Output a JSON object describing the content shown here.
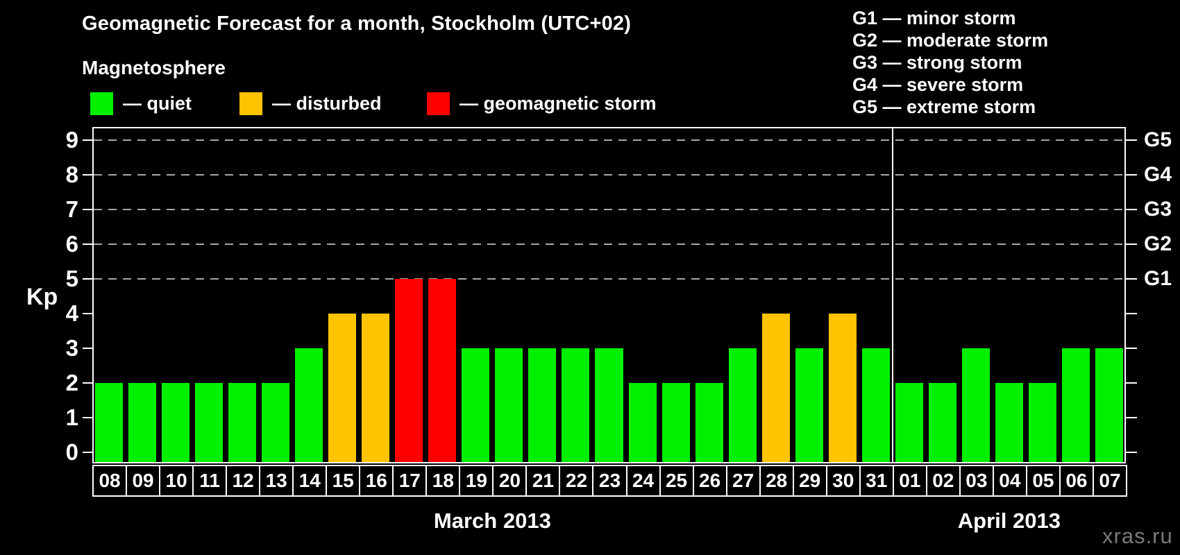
{
  "title": "Geomagnetic Forecast for a month, Stockholm (UTC+02)",
  "subtitle": "Magnetosphere",
  "legend": {
    "items": [
      {
        "status": "quiet",
        "label": "— quiet",
        "color": "#00f000"
      },
      {
        "status": "disturbed",
        "label": "— disturbed",
        "color": "#ffc400"
      },
      {
        "status": "storm",
        "label": "— geomagnetic storm",
        "color": "#ff0000"
      }
    ]
  },
  "storm_scale": {
    "items": [
      "G1 — minor storm",
      "G2 — moderate storm",
      "G3 — strong storm",
      "G4 — severe storm",
      "G5 — extreme storm"
    ]
  },
  "watermark": "xras.ru",
  "chart_data": {
    "type": "bar",
    "title": "Geomagnetic Forecast for a month, Stockholm (UTC+02)",
    "ylabel": "Kp",
    "ylim": [
      0,
      9
    ],
    "yticks": [
      0,
      1,
      2,
      3,
      4,
      5,
      6,
      7,
      8,
      9
    ],
    "gridlines_at_kp": [
      5,
      6,
      7,
      8,
      9
    ],
    "grid": "dashed horizontal at storm levels only",
    "legend_position": "top-left",
    "right_axis_labels": [
      {
        "kp": 5,
        "label": "G1"
      },
      {
        "kp": 6,
        "label": "G2"
      },
      {
        "kp": 7,
        "label": "G3"
      },
      {
        "kp": 8,
        "label": "G4"
      },
      {
        "kp": 9,
        "label": "G5"
      }
    ],
    "months": [
      {
        "label": "March 2013",
        "days": 24
      },
      {
        "label": "April 2013",
        "days": 7
      }
    ],
    "categories": [
      "08",
      "09",
      "10",
      "11",
      "12",
      "13",
      "14",
      "15",
      "16",
      "17",
      "18",
      "19",
      "20",
      "21",
      "22",
      "23",
      "24",
      "25",
      "26",
      "27",
      "28",
      "29",
      "30",
      "31",
      "01",
      "02",
      "03",
      "04",
      "05",
      "06",
      "07"
    ],
    "values": [
      2,
      2,
      2,
      2,
      2,
      2,
      3,
      4,
      4,
      5,
      5,
      3,
      3,
      3,
      3,
      3,
      2,
      2,
      2,
      3,
      4,
      3,
      4,
      3,
      2,
      2,
      3,
      2,
      2,
      3,
      3
    ],
    "statuses": [
      "quiet",
      "quiet",
      "quiet",
      "quiet",
      "quiet",
      "quiet",
      "quiet",
      "disturbed",
      "disturbed",
      "storm",
      "storm",
      "quiet",
      "quiet",
      "quiet",
      "quiet",
      "quiet",
      "quiet",
      "quiet",
      "quiet",
      "quiet",
      "disturbed",
      "quiet",
      "disturbed",
      "quiet",
      "quiet",
      "quiet",
      "quiet",
      "quiet",
      "quiet",
      "quiet",
      "quiet"
    ],
    "colors": {
      "quiet": "#00f000",
      "disturbed": "#ffc400",
      "storm": "#ff0000"
    }
  }
}
